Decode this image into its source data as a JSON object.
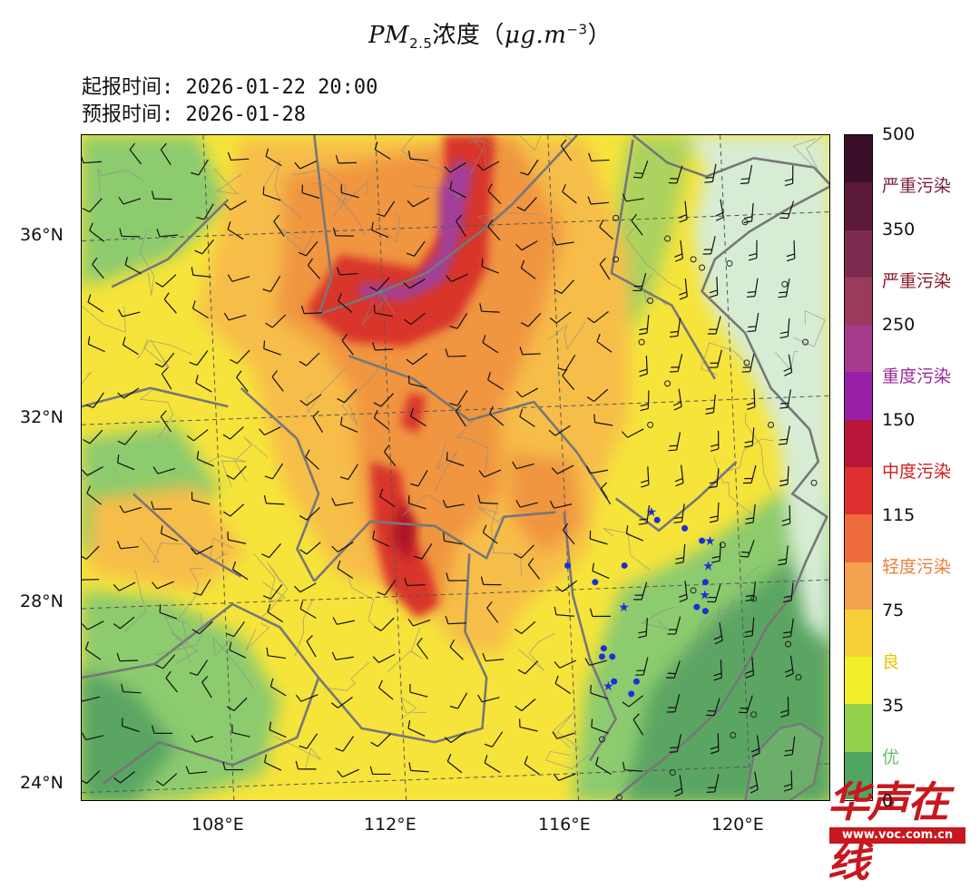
{
  "title": {
    "main": "PM",
    "sub": "2.5",
    "mid": "浓度（",
    "unit": "μg.m",
    "exp": "−3",
    "close": "）"
  },
  "issue_time": "起报时间: 2026-01-22 20:00",
  "valid_time": "预报时间: 2026-01-28",
  "lat_labels": [
    "36°N",
    "32°N",
    "28°N",
    "24°N"
  ],
  "lon_labels": [
    "108°E",
    "112°E",
    "116°E",
    "120°E"
  ],
  "colorbar": {
    "labels": [
      "500",
      "严重污染",
      "350",
      "严重污染",
      "250",
      "重度污染",
      "150",
      "中度污染",
      "115",
      "轻度污染",
      "75",
      "良",
      "35",
      "优",
      "0"
    ],
    "label_colors": [
      "#111111",
      "#7a1f3a",
      "#111111",
      "#8a1a2a",
      "#111111",
      "#9b2a9b",
      "#111111",
      "#d01c1c",
      "#111111",
      "#e8823a",
      "#111111",
      "#e8c400",
      "#111111",
      "#6cc06c",
      "#111111"
    ],
    "segments": [
      {
        "color": "#3b0f2a",
        "share": 1
      },
      {
        "color": "#5c1a3a",
        "share": 1
      },
      {
        "color": "#7c2b4e",
        "share": 1
      },
      {
        "color": "#9a3b5c",
        "share": 1
      },
      {
        "color": "#a83a8e",
        "share": 1
      },
      {
        "color": "#9a1fa8",
        "share": 1
      },
      {
        "color": "#b8163a",
        "share": 1
      },
      {
        "color": "#de3030",
        "share": 1
      },
      {
        "color": "#ee6b3c",
        "share": 1
      },
      {
        "color": "#f5a24f",
        "share": 1
      },
      {
        "color": "#f7cf38",
        "share": 1
      },
      {
        "color": "#f2ef2a",
        "share": 1
      },
      {
        "color": "#93d04a",
        "share": 1
      },
      {
        "color": "#4fa661",
        "share": 1
      }
    ]
  },
  "map_colors": {
    "clean": "#d7ecd4",
    "good_green": "#8ccb6e",
    "dark_green": "#5aa562",
    "yellow": "#f6e43a",
    "light_orange": "#f7bd4a",
    "orange": "#f0953f",
    "red": "#d9352a",
    "dark_red": "#b01826",
    "purple": "#a13f9a"
  },
  "city_markers": {
    "circles": [
      [
        31,
        37
      ],
      [
        31,
        38
      ],
      [
        33,
        36
      ],
      [
        34,
        37.5
      ],
      [
        35.5,
        37
      ],
      [
        36,
        36.8
      ],
      [
        37.6,
        36.9
      ],
      [
        38.5,
        37.9
      ],
      [
        40.8,
        36.4
      ],
      [
        32.5,
        35
      ],
      [
        33,
        33
      ],
      [
        34,
        34
      ],
      [
        38.6,
        34.5
      ],
      [
        40,
        33
      ],
      [
        42,
        35
      ],
      [
        45,
        31
      ],
      [
        42.5,
        31.6
      ],
      [
        35.5,
        29
      ],
      [
        37.2,
        30.1
      ],
      [
        39,
        28.8
      ],
      [
        41,
        27.7
      ],
      [
        44.6,
        28.9
      ],
      [
        41.6,
        26.9
      ],
      [
        39,
        26
      ],
      [
        37.8,
        25.5
      ],
      [
        34.3,
        24.6
      ],
      [
        31.2,
        24
      ],
      [
        35.8,
        23.8
      ],
      [
        30.2,
        25.4
      ],
      [
        31.7,
        22.5
      ],
      [
        33.2,
        20.2
      ],
      [
        37,
        22.4
      ],
      [
        41.4,
        22.3
      ],
      [
        44.4,
        24.7
      ],
      [
        46,
        20.8
      ]
    ],
    "dots": [
      [
        29.8,
        29.2
      ],
      [
        30.2,
        27.4
      ],
      [
        30.8,
        27.4
      ],
      [
        31.5,
        29.6
      ],
      [
        30.3,
        27.6
      ],
      [
        35,
        30.5
      ],
      [
        36,
        30.2
      ],
      [
        35.7,
        28.6
      ],
      [
        36.2,
        28.5
      ],
      [
        36.2,
        29.2
      ],
      [
        30.9,
        26.8
      ],
      [
        31.9,
        26.5
      ],
      [
        32.2,
        26.8
      ],
      [
        33.4,
        30.7
      ],
      [
        28.2,
        29.6
      ]
    ],
    "stars": [
      [
        33,
        30.9
      ],
      [
        36.4,
        30.2
      ],
      [
        36.3,
        29.6
      ],
      [
        36.1,
        28.9
      ],
      [
        30.5,
        26.7
      ],
      [
        31.4,
        28.6
      ]
    ]
  },
  "watermark": {
    "text": "华声在线",
    "url": "www.voc.com.cn"
  }
}
